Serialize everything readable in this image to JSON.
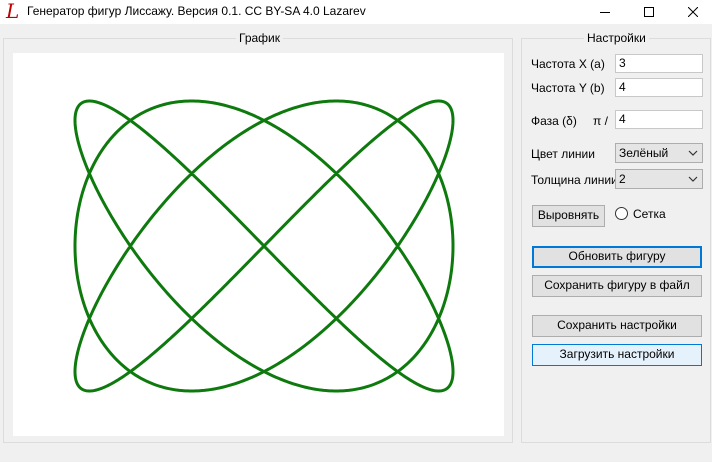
{
  "window": {
    "title": "Генератор фигур Лиссажу. Версия 0.1. CC BY-SA 4.0 Lazarev",
    "icon_glyph": "L",
    "icon": "lissajous-app-icon",
    "minimize_icon": "minimize-icon",
    "maximize_icon": "maximize-icon",
    "close_icon": "close-icon"
  },
  "graph": {
    "group_title": "График"
  },
  "settings": {
    "group_title": "Настройки",
    "freq_x_label": "Частота X (a)",
    "freq_x_value": "3",
    "freq_y_label": "Частота Y (b)",
    "freq_y_value": "4",
    "phase_label": "Фаза (δ)",
    "phase_prefix": "π /",
    "phase_value": "4",
    "line_color_label": "Цвет линии",
    "line_color_value": "Зелёный",
    "line_width_label": "Толщина линии",
    "line_width_value": "2",
    "align_button": "Выровнять",
    "grid_label": "Сетка",
    "grid_checked": false,
    "update_button": "Обновить фигуру",
    "save_figure_button": "Сохранить фигуру в файл",
    "save_settings_button": "Сохранить настройки",
    "load_settings_button": "Загрузить настройки"
  },
  "colors": {
    "line": "#0e7a0e",
    "accent": "#0078d7"
  },
  "curve": {
    "a": 3,
    "b": 4,
    "phase_divisor": 4,
    "line_width": 2
  }
}
